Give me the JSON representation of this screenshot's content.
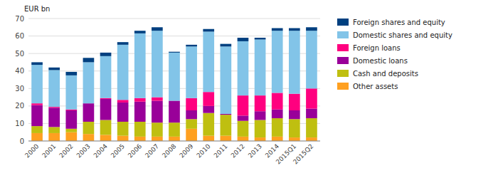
{
  "chart_data": {
    "type": "bar",
    "stacked": true,
    "ylabel": "EUR bn",
    "categories": [
      "2000",
      "2001",
      "2002",
      "2003",
      "2004",
      "2005",
      "2006",
      "2007",
      "2008",
      "2009",
      "2010",
      "2011",
      "2012",
      "2013",
      "2014",
      "2015Q1",
      "2015Q2"
    ],
    "series": [
      {
        "name": "Other assets",
        "color": "#FFA020",
        "values": [
          4.5,
          4.5,
          5.0,
          4.0,
          3.5,
          3.0,
          2.5,
          2.5,
          2.5,
          7.0,
          3.0,
          3.0,
          2.5,
          2.0,
          2.5,
          2.0,
          2.0
        ]
      },
      {
        "name": "Cash and deposits",
        "color": "#BFBF10",
        "values": [
          4.0,
          3.5,
          2.0,
          7.0,
          8.5,
          8.0,
          8.5,
          8.0,
          8.0,
          5.5,
          13.0,
          12.0,
          9.0,
          10.0,
          10.5,
          10.5,
          11.0
        ]
      },
      {
        "name": "Domestic loans",
        "color": "#990099",
        "values": [
          12.0,
          11.0,
          10.5,
          10.5,
          12.0,
          11.0,
          11.5,
          12.5,
          12.5,
          5.0,
          4.0,
          0.5,
          3.0,
          5.0,
          5.0,
          5.0,
          5.5
        ]
      },
      {
        "name": "Foreign loans",
        "color": "#FF007F",
        "values": [
          1.0,
          0.5,
          0.5,
          0.0,
          0.5,
          1.5,
          2.0,
          2.0,
          0.0,
          7.0,
          8.0,
          0.0,
          11.5,
          9.0,
          9.5,
          9.5,
          11.5
        ]
      },
      {
        "name": "Domestic shares and equity",
        "color": "#82C4E8",
        "values": [
          22.0,
          21.0,
          19.5,
          23.5,
          24.0,
          31.5,
          37.0,
          38.0,
          27.5,
          29.5,
          34.5,
          38.5,
          31.0,
          32.0,
          35.5,
          36.0,
          33.0
        ]
      },
      {
        "name": "Foreign shares and equity",
        "color": "#004080",
        "values": [
          1.5,
          1.5,
          2.0,
          2.5,
          2.0,
          1.5,
          1.5,
          2.0,
          0.5,
          1.0,
          1.5,
          1.5,
          2.0,
          1.0,
          1.5,
          1.5,
          2.0
        ]
      }
    ],
    "ylim": [
      0,
      70
    ],
    "yticks": [
      0,
      10,
      20,
      30,
      40,
      50,
      60,
      70
    ],
    "grid": true,
    "legend": "right"
  }
}
